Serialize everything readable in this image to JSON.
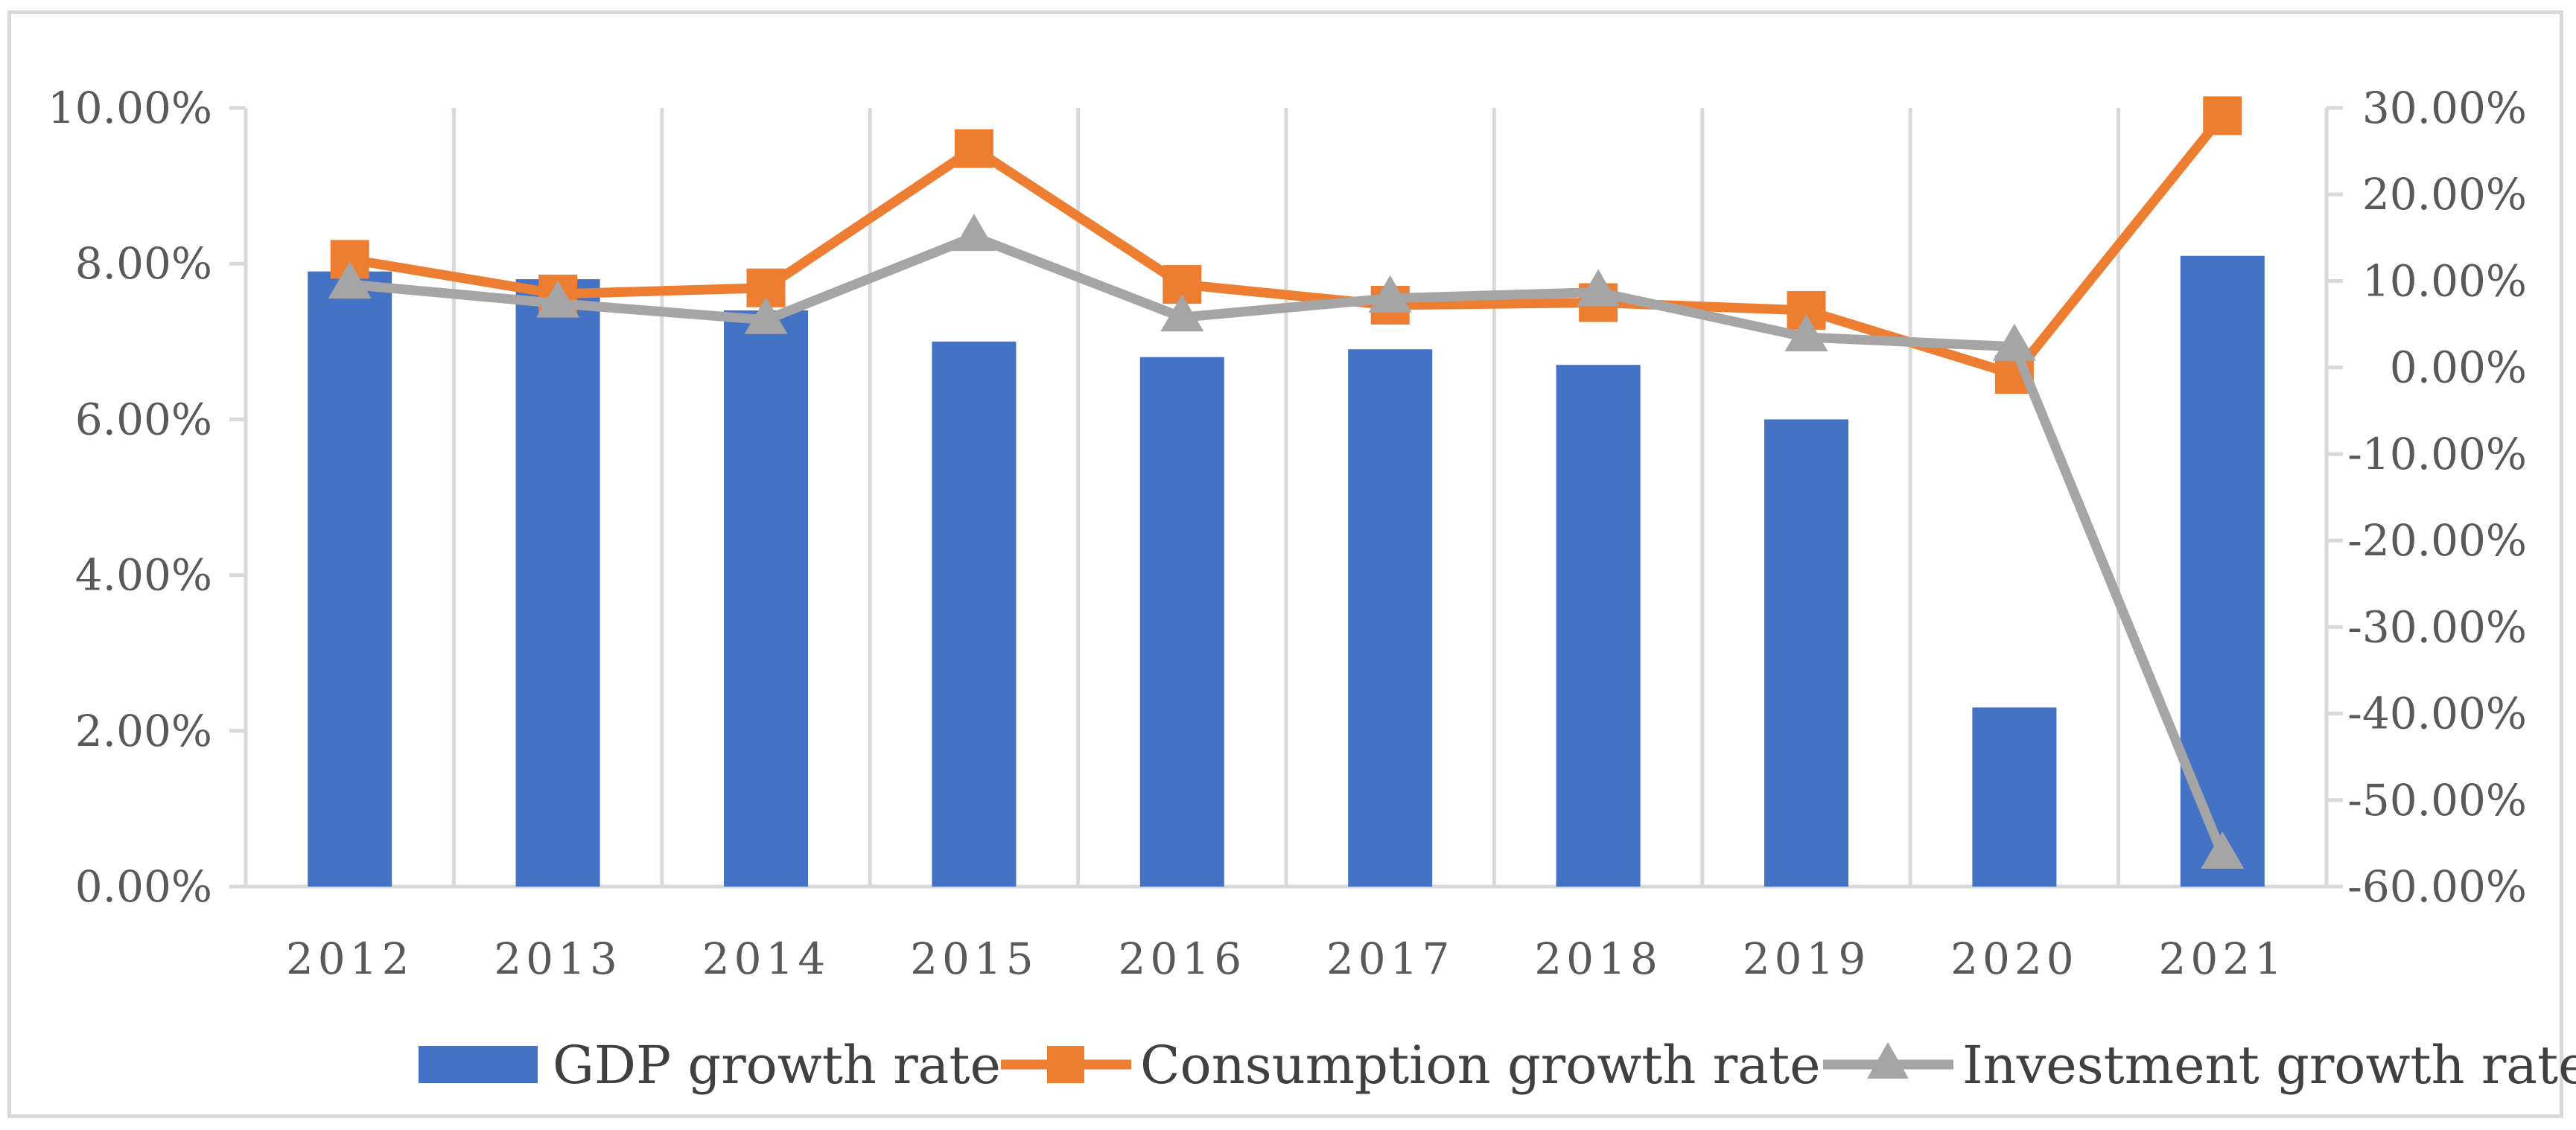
{
  "chart_data": {
    "type": "bar+line",
    "categories": [
      "2012",
      "2013",
      "2014",
      "2015",
      "2016",
      "2017",
      "2018",
      "2019",
      "2020",
      "2021"
    ],
    "series": [
      {
        "name": "GDP growth rate",
        "kind": "bar",
        "axis": "left",
        "color": "#4472c4",
        "values": [
          7.9,
          7.8,
          7.4,
          7.0,
          6.8,
          6.9,
          6.7,
          6.0,
          2.3,
          8.1
        ]
      },
      {
        "name": "Consumption growth rate",
        "kind": "line",
        "marker": "square",
        "axis": "right",
        "color": "#ed7d31",
        "values": [
          12.5,
          8.5,
          9.2,
          25.3,
          9.6,
          7.2,
          7.5,
          6.6,
          -0.8,
          29.1
        ]
      },
      {
        "name": "Investment growth rate",
        "kind": "line",
        "marker": "triangle",
        "axis": "right",
        "color": "#a5a5a5",
        "values": [
          9.6,
          7.4,
          5.5,
          15.1,
          5.8,
          8.0,
          8.7,
          3.5,
          2.4,
          -56.3
        ]
      }
    ],
    "y_left": {
      "min": 0,
      "max": 10,
      "step": 2,
      "tick_labels": [
        "0.00%",
        "2.00%",
        "4.00%",
        "6.00%",
        "8.00%",
        "10.00%"
      ]
    },
    "y_right": {
      "min": -60,
      "max": 30,
      "step": 10,
      "tick_labels": [
        "-60.00%",
        "-50.00%",
        "-40.00%",
        "-30.00%",
        "-20.00%",
        "-10.00%",
        "0.00%",
        "10.00%",
        "20.00%",
        "30.00%"
      ]
    },
    "grid": "vertical",
    "legend_position": "bottom"
  }
}
